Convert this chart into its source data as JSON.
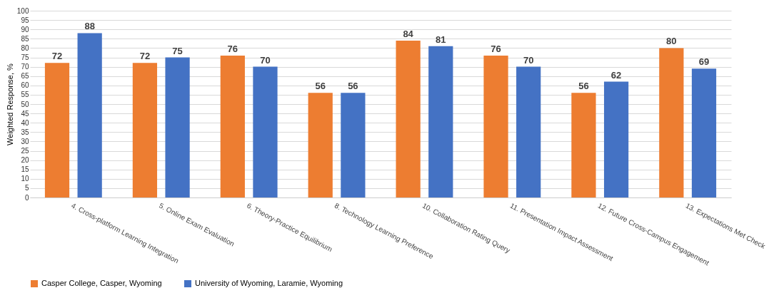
{
  "chart_data": {
    "type": "bar",
    "ylabel": "Weighted Response, %",
    "categories": [
      "4. Cross-platform Learning Integration",
      "5. Online Exam Evaluation",
      "6. Theory-Practice Equilibrium",
      "8. Technology Learning Preference",
      "10. Collaboration Rating Query",
      "11. Presentation Impact Assessment",
      "12. Future Cross-Campus Engagement",
      "13. Expectations Met Check"
    ],
    "series": [
      {
        "name": "Casper College, Casper, Wyoming",
        "color": "#ed7d31",
        "values": [
          72,
          72,
          76,
          56,
          84,
          76,
          56,
          80
        ]
      },
      {
        "name": "University of Wyoming, Laramie, Wyoming",
        "color": "#4472c4",
        "values": [
          88,
          75,
          70,
          56,
          81,
          70,
          62,
          69
        ]
      }
    ],
    "ylim": [
      0,
      100
    ],
    "yticks": [
      0,
      5,
      10,
      15,
      20,
      25,
      30,
      35,
      40,
      45,
      50,
      55,
      60,
      65,
      70,
      75,
      80,
      85,
      90,
      95,
      100
    ],
    "grid": "y",
    "legend": "bottom",
    "data_labels": true
  }
}
